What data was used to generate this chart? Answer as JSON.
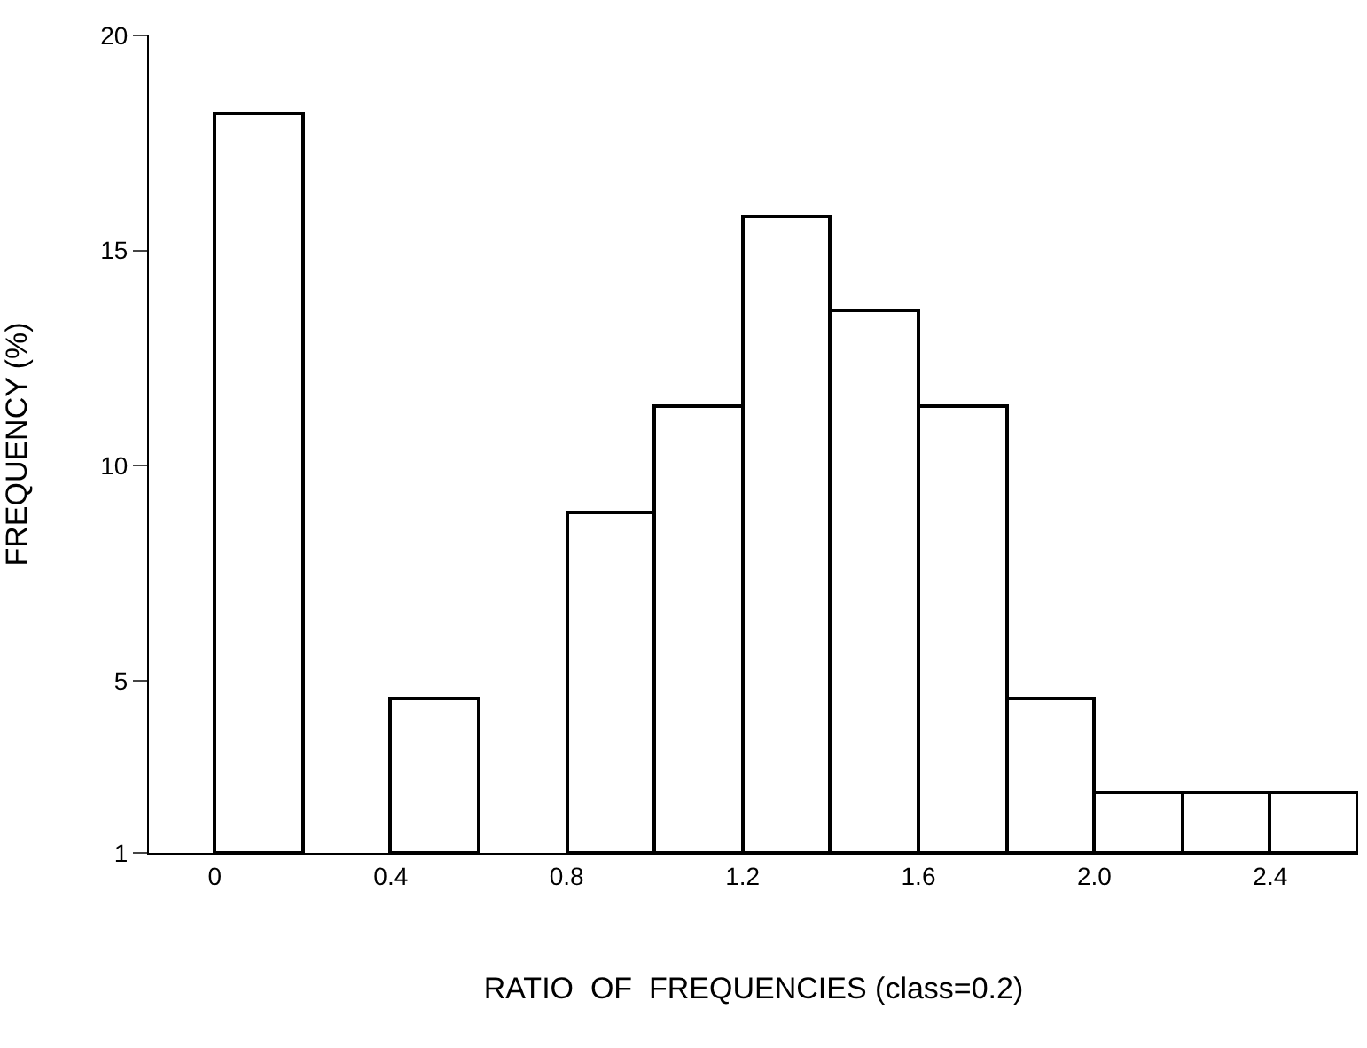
{
  "chart_data": {
    "type": "histogram",
    "xlabel": "RATIO  OF  FREQUENCIES (class=0.2)",
    "ylabel": "FREQUENCY (%)",
    "bins": [
      0,
      0.2,
      0.4,
      0.6,
      0.8,
      1.0,
      1.2,
      1.4,
      1.6,
      1.8,
      2.0,
      2.2,
      2.4,
      2.6
    ],
    "values": [
      18.2,
      null,
      4.6,
      null,
      8.9,
      11.4,
      15.8,
      13.6,
      11.4,
      4.6,
      2.4,
      2.4,
      2.4
    ],
    "color": "#ffffff",
    "xlim": [
      -0.15,
      2.6
    ],
    "xticks": [
      0,
      0.4,
      0.8,
      1.2,
      1.6,
      {
        "value": 2.0,
        "label": "2.0"
      },
      2.4
    ],
    "ylim": [
      1,
      20
    ],
    "yticks": [
      1,
      5,
      10,
      15,
      20
    ]
  }
}
